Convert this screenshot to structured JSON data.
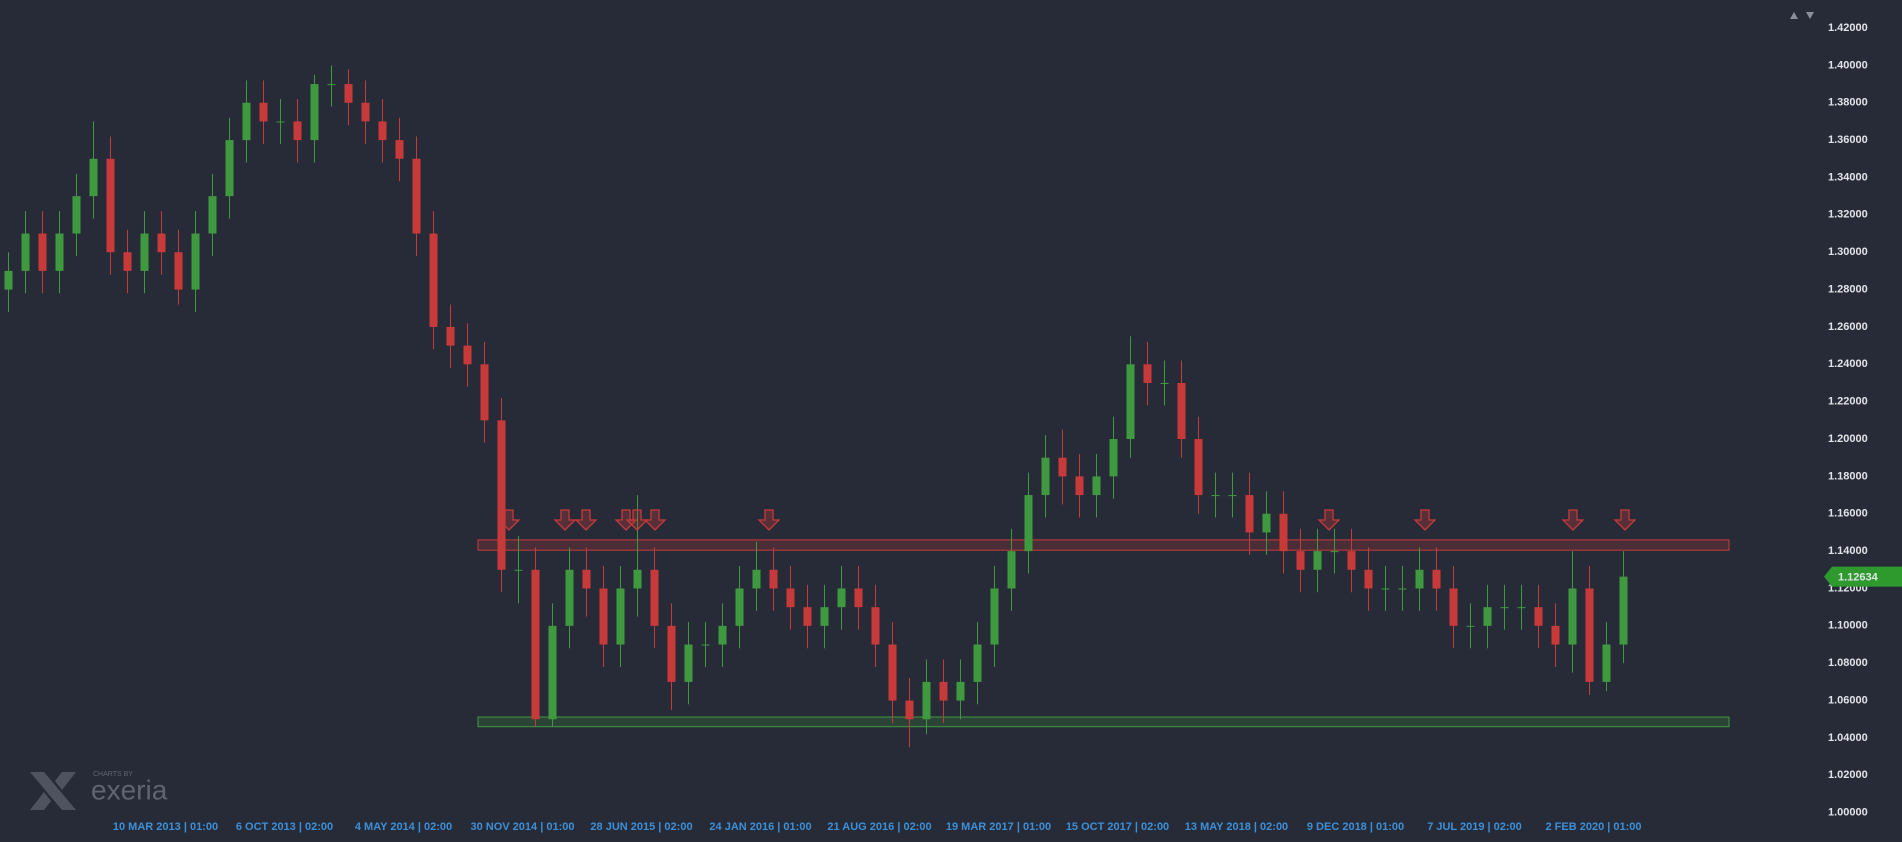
{
  "chart_data": {
    "type": "candlestick",
    "categories": [
      null,
      null,
      null,
      null,
      null,
      null,
      null,
      null,
      null,
      "10 MAR 2013 | 01:00",
      null,
      null,
      null,
      null,
      null,
      null,
      "6 OCT 2013 | 02:00",
      null,
      null,
      null,
      null,
      null,
      null,
      "4 MAY 2014 | 02:00",
      null,
      null,
      null,
      null,
      null,
      null,
      "30 NOV 2014 | 01:00",
      null,
      null,
      null,
      null,
      null,
      null,
      "28 JUN 2015 | 02:00",
      null,
      null,
      null,
      null,
      null,
      null,
      "24 JAN 2016 | 01:00",
      null,
      null,
      null,
      null,
      null,
      null,
      "21 AUG 2016 | 02:00",
      null,
      null,
      null,
      null,
      null,
      null,
      "19 MAR 2017 | 01:00",
      null,
      null,
      null,
      null,
      null,
      null,
      "15 OCT 2017 | 02:00",
      null,
      null,
      null,
      null,
      null,
      null,
      "13 MAY 2018 | 02:00",
      null,
      null,
      null,
      null,
      null,
      null,
      "9 DEC 2018 | 01:00",
      null,
      null,
      null,
      null,
      null,
      null,
      "7 JUL 2019 | 02:00",
      null,
      null,
      null,
      null,
      null,
      null,
      "2 FEB 2020 | 01:00",
      null,
      null
    ],
    "open": [
      1.28,
      1.29,
      1.31,
      1.29,
      1.31,
      1.33,
      1.35,
      1.3,
      1.29,
      1.31,
      1.3,
      1.28,
      1.31,
      1.33,
      1.36,
      1.38,
      1.37,
      1.37,
      1.36,
      1.39,
      1.39,
      1.38,
      1.37,
      1.36,
      1.35,
      1.31,
      1.26,
      1.25,
      1.24,
      1.21,
      1.13,
      1.13,
      1.05,
      1.1,
      1.13,
      1.12,
      1.09,
      1.12,
      1.13,
      1.1,
      1.07,
      1.09,
      1.09,
      1.1,
      1.12,
      1.13,
      1.12,
      1.11,
      1.1,
      1.11,
      1.12,
      1.11,
      1.09,
      1.06,
      1.05,
      1.07,
      1.06,
      1.07,
      1.09,
      1.12,
      1.14,
      1.17,
      1.19,
      1.18,
      1.17,
      1.18,
      1.2,
      1.24,
      1.23,
      1.23,
      1.2,
      1.17,
      1.17,
      1.17,
      1.15,
      1.16,
      1.14,
      1.13,
      1.14,
      1.14,
      1.13,
      1.12,
      1.12,
      1.12,
      1.13,
      1.12,
      1.1,
      1.1,
      1.11,
      1.11,
      1.11,
      1.1,
      1.09,
      1.12,
      1.07,
      1.09
    ],
    "high": [
      1.3,
      1.322,
      1.322,
      1.322,
      1.342,
      1.37,
      1.362,
      1.312,
      1.322,
      1.322,
      1.312,
      1.322,
      1.342,
      1.372,
      1.392,
      1.392,
      1.382,
      1.382,
      1.395,
      1.4,
      1.398,
      1.392,
      1.382,
      1.372,
      1.362,
      1.322,
      1.272,
      1.262,
      1.252,
      1.222,
      1.148,
      1.142,
      1.112,
      1.142,
      1.142,
      1.132,
      1.132,
      1.17,
      1.142,
      1.112,
      1.102,
      1.102,
      1.112,
      1.132,
      1.145,
      1.142,
      1.132,
      1.122,
      1.122,
      1.132,
      1.132,
      1.122,
      1.102,
      1.072,
      1.082,
      1.082,
      1.082,
      1.102,
      1.132,
      1.152,
      1.182,
      1.202,
      1.205,
      1.192,
      1.192,
      1.212,
      1.255,
      1.252,
      1.242,
      1.242,
      1.212,
      1.182,
      1.182,
      1.182,
      1.172,
      1.172,
      1.152,
      1.152,
      1.152,
      1.152,
      1.142,
      1.132,
      1.132,
      1.142,
      1.142,
      1.132,
      1.112,
      1.122,
      1.122,
      1.122,
      1.122,
      1.112,
      1.14,
      1.132,
      1.102,
      1.14
    ],
    "low": [
      1.268,
      1.278,
      1.278,
      1.278,
      1.298,
      1.318,
      1.288,
      1.278,
      1.278,
      1.288,
      1.272,
      1.268,
      1.298,
      1.318,
      1.348,
      1.358,
      1.358,
      1.348,
      1.348,
      1.378,
      1.368,
      1.358,
      1.348,
      1.338,
      1.298,
      1.248,
      1.238,
      1.228,
      1.198,
      1.118,
      1.112,
      1.046,
      1.046,
      1.088,
      1.105,
      1.078,
      1.078,
      1.105,
      1.088,
      1.055,
      1.058,
      1.078,
      1.078,
      1.088,
      1.108,
      1.108,
      1.098,
      1.088,
      1.088,
      1.098,
      1.098,
      1.078,
      1.048,
      1.035,
      1.042,
      1.048,
      1.05,
      1.058,
      1.078,
      1.108,
      1.128,
      1.158,
      1.165,
      1.158,
      1.158,
      1.168,
      1.19,
      1.218,
      1.218,
      1.19,
      1.16,
      1.158,
      1.158,
      1.138,
      1.138,
      1.128,
      1.118,
      1.118,
      1.128,
      1.118,
      1.108,
      1.108,
      1.108,
      1.108,
      1.108,
      1.088,
      1.088,
      1.088,
      1.098,
      1.098,
      1.088,
      1.078,
      1.075,
      1.063,
      1.065,
      1.08
    ],
    "close": [
      1.29,
      1.31,
      1.29,
      1.31,
      1.33,
      1.35,
      1.3,
      1.29,
      1.31,
      1.3,
      1.28,
      1.31,
      1.33,
      1.36,
      1.38,
      1.37,
      1.37,
      1.36,
      1.39,
      1.39,
      1.38,
      1.37,
      1.36,
      1.35,
      1.31,
      1.26,
      1.25,
      1.24,
      1.21,
      1.13,
      1.13,
      1.05,
      1.1,
      1.13,
      1.12,
      1.09,
      1.12,
      1.13,
      1.1,
      1.07,
      1.09,
      1.09,
      1.1,
      1.12,
      1.13,
      1.12,
      1.11,
      1.1,
      1.11,
      1.12,
      1.11,
      1.09,
      1.06,
      1.05,
      1.07,
      1.06,
      1.07,
      1.09,
      1.12,
      1.14,
      1.17,
      1.19,
      1.18,
      1.17,
      1.18,
      1.2,
      1.24,
      1.23,
      1.23,
      1.2,
      1.17,
      1.17,
      1.17,
      1.15,
      1.16,
      1.14,
      1.13,
      1.14,
      1.14,
      1.13,
      1.12,
      1.12,
      1.12,
      1.13,
      1.12,
      1.1,
      1.1,
      1.11,
      1.11,
      1.11,
      1.1,
      1.09,
      1.12,
      1.07,
      1.09,
      1.12634
    ],
    "up_color": "#3f9a3f",
    "down_color": "#c8393a",
    "ylim": [
      0.995,
      1.435
    ],
    "yticks": [
      {
        "value": 1.0,
        "label": "1.00000"
      },
      {
        "value": 1.02,
        "label": "1.02000"
      },
      {
        "value": 1.04,
        "label": "1.04000"
      },
      {
        "value": 1.06,
        "label": "1.06000"
      },
      {
        "value": 1.08,
        "label": "1.08000"
      },
      {
        "value": 1.1,
        "label": "1.10000"
      },
      {
        "value": 1.12,
        "label": "1.12000"
      },
      {
        "value": 1.14,
        "label": "1.14000"
      },
      {
        "value": 1.16,
        "label": "1.16000"
      },
      {
        "value": 1.18,
        "label": "1.18000"
      },
      {
        "value": 1.2,
        "label": "1.20000"
      },
      {
        "value": 1.22,
        "label": "1.22000"
      },
      {
        "value": 1.24,
        "label": "1.24000"
      },
      {
        "value": 1.26,
        "label": "1.26000"
      },
      {
        "value": 1.28,
        "label": "1.28000"
      },
      {
        "value": 1.3,
        "label": "1.30000"
      },
      {
        "value": 1.32,
        "label": "1.32000"
      },
      {
        "value": 1.34,
        "label": "1.34000"
      },
      {
        "value": 1.36,
        "label": "1.36000"
      },
      {
        "value": 1.38,
        "label": "1.38000"
      },
      {
        "value": 1.4,
        "label": "1.40000"
      },
      {
        "value": 1.42,
        "label": "1.42000"
      }
    ],
    "grid": false,
    "zones": [
      {
        "low": 1.1405,
        "high": 1.146,
        "color": "#c8393a"
      },
      {
        "low": 1.046,
        "high": 1.0512,
        "color": "#3f9a3f"
      }
    ],
    "last_price": 1.12634,
    "last_price_color": "#2e9a2e",
    "branding": {
      "caption": "CHARTS BY",
      "name": "exeria"
    }
  }
}
